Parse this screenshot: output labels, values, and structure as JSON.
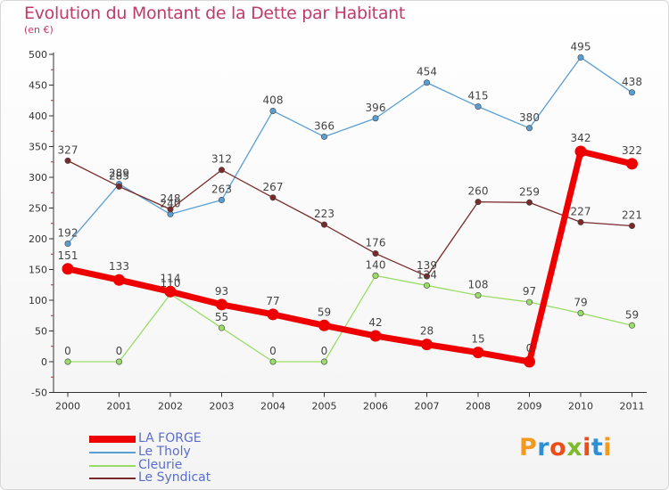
{
  "header": {
    "title": "Evolution du Montant de la Dette par Habitant",
    "unit": "(en €)"
  },
  "brand": {
    "letters": [
      "P",
      "r",
      "o",
      "x",
      "i",
      "t",
      "i"
    ],
    "colors": [
      "#f39a1e",
      "#2d8fd5",
      "#e94e1b",
      "#7dbb2b",
      "#e94e1b",
      "#2d8fd5",
      "#f39a1e"
    ]
  },
  "chart_data": {
    "type": "line",
    "title": "Evolution du Montant de la Dette par Habitant",
    "ylabel": "(en €)",
    "xlabel": "",
    "x": [
      "2000",
      "2001",
      "2002",
      "2003",
      "2004",
      "2005",
      "2006",
      "2007",
      "2008",
      "2009",
      "2010",
      "2011"
    ],
    "ylim": [
      -50,
      500
    ],
    "yticks": [
      "-50",
      "0",
      "50",
      "100",
      "150",
      "200",
      "250",
      "300",
      "350",
      "400",
      "450",
      "500"
    ],
    "grid": false,
    "legend_position": "bottom-left",
    "series": [
      {
        "name": "LA FORGE",
        "color": "#ee0000",
        "values": [
          151,
          133,
          114,
          93,
          77,
          59,
          42,
          28,
          15,
          0,
          342,
          322
        ],
        "labels": [
          "151",
          "133",
          "114",
          "93",
          "77",
          "59",
          "42",
          "28",
          "15",
          "0",
          "342",
          "322"
        ]
      },
      {
        "name": "Le Tholy",
        "color": "#5a9fd4",
        "values": [
          192,
          289,
          240,
          263,
          408,
          366,
          396,
          454,
          415,
          380,
          495,
          438
        ],
        "labels": [
          "192",
          "289",
          "240",
          "263",
          "408",
          "366",
          "396",
          "454",
          "415",
          "380",
          "495",
          "438"
        ]
      },
      {
        "name": "Cleurie",
        "color": "#99dd66",
        "values": [
          0,
          0,
          110,
          55,
          0,
          0,
          140,
          124,
          108,
          97,
          79,
          59
        ],
        "labels": [
          "0",
          "0",
          "110",
          "55",
          "0",
          "0",
          "140",
          "124",
          "108",
          "97",
          "79",
          "59"
        ]
      },
      {
        "name": "Le Syndicat",
        "color": "#7a2a2a",
        "values": [
          327,
          285,
          248,
          312,
          267,
          223,
          176,
          139,
          260,
          259,
          227,
          221
        ],
        "labels": [
          "327",
          "285",
          "248",
          "312",
          "267",
          "223",
          "176",
          "139",
          "260",
          "259",
          "227",
          "221"
        ]
      }
    ]
  }
}
